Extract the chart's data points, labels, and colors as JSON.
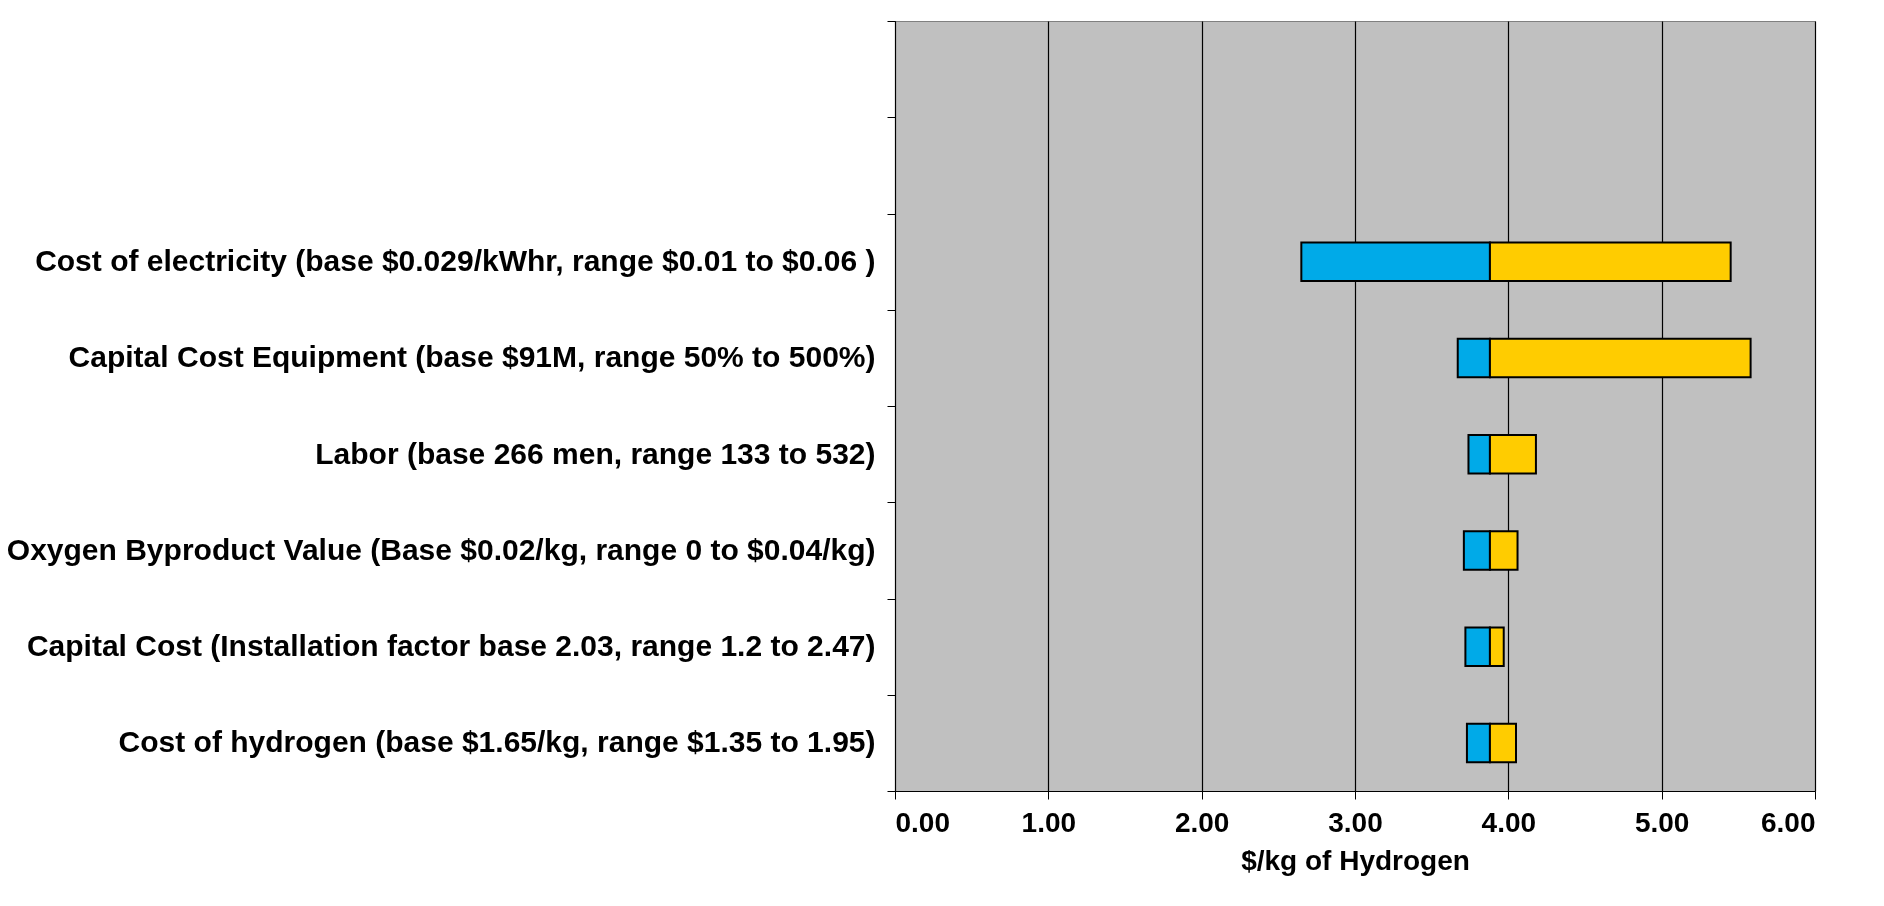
{
  "chart_data": {
    "type": "bar",
    "orientation": "horizontal",
    "xlabel": "$/kg of Hydrogen",
    "categories": [
      null,
      null,
      "Cost of electricity (base $0.029/kWhr, range $0.01 to $0.06 )",
      "Capital Cost Equipment (base $91M, range 50% to 500%)",
      "Labor (base 266 men, range 133 to 532)",
      "Oxygen Byproduct Value (Base $0.02/kg, range 0 to $0.04/kg)",
      "Capital Cost (Installation factor base 2.03, range 1.2 to 2.47)",
      "Cost of hydrogen (base $1.65/kg, range $1.35 to 1.95)"
    ],
    "series": [
      {
        "color": "#00aae8",
        "base": [
          null,
          null,
          2.65,
          3.67,
          3.74,
          3.71,
          3.72,
          3.73
        ],
        "values": [
          null,
          null,
          1.23,
          0.21,
          0.14,
          0.17,
          0.16,
          0.15
        ]
      },
      {
        "color": "#ffcc00",
        "base": [
          null,
          null,
          3.88,
          3.88,
          3.88,
          3.88,
          3.88,
          3.88
        ],
        "values": [
          null,
          null,
          1.57,
          1.7,
          0.3,
          0.18,
          0.09,
          0.17
        ]
      }
    ],
    "xlim": [
      0,
      6
    ],
    "xticks": [
      {
        "value": 0,
        "label": "0.00"
      },
      {
        "value": 1,
        "label": "1.00"
      },
      {
        "value": 2,
        "label": "2.00"
      },
      {
        "value": 3,
        "label": "3.00"
      },
      {
        "value": 4,
        "label": "4.00"
      },
      {
        "value": 5,
        "label": "5.00"
      },
      {
        "value": 6,
        "label": "6.00"
      }
    ],
    "grid": "x",
    "legend": false
  }
}
